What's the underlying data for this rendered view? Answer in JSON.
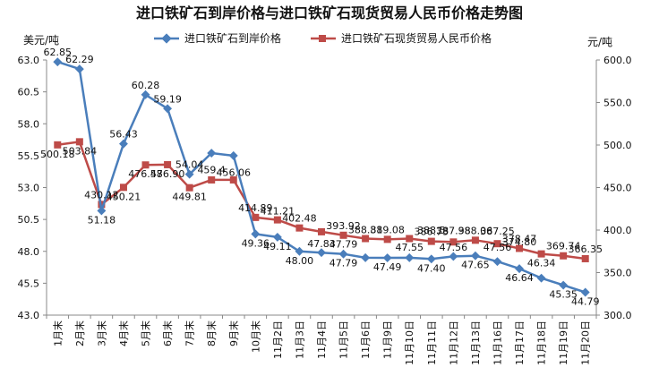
{
  "chart_data": {
    "type": "line",
    "title": "进口铁矿石到岸价格与进口铁矿石现货贸易人民币价格走势图",
    "ylabel_left": "美元/吨",
    "ylabel_right": "元/吨",
    "categories": [
      "1月末",
      "2月末",
      "3月末",
      "4月末",
      "5月末",
      "6月末",
      "7月末",
      "8月末",
      "9月末",
      "10月末",
      "11月2日",
      "11月3日",
      "11月4日",
      "11月5日",
      "11月6日",
      "11月9日",
      "11月10日",
      "11月11日",
      "11月12日",
      "11月13日",
      "11月16日",
      "11月17日",
      "11月18日",
      "11月19日",
      "11月20日"
    ],
    "y_left": {
      "min": 43.0,
      "max": 63.0,
      "ticks": [
        "43.0",
        "45.5",
        "48.0",
        "50.5",
        "53.0",
        "55.5",
        "58.0",
        "60.5",
        "63.0"
      ]
    },
    "y_right": {
      "min": 300.0,
      "max": 600.0,
      "ticks": [
        "300.0",
        "350.0",
        "400.0",
        "450.0",
        "500.0",
        "550.0",
        "600.0"
      ]
    },
    "grid": false,
    "legend_position": "top",
    "series": [
      {
        "name": "进口铁矿石到岸价格",
        "axis": "left",
        "color": "#4a7ebb",
        "marker": "diamond",
        "values": [
          62.85,
          62.29,
          51.18,
          56.43,
          60.28,
          59.19,
          54.04,
          55.7,
          55.5,
          49.36,
          49.11,
          48.0,
          47.9,
          47.79,
          47.5,
          47.49,
          47.5,
          47.4,
          47.6,
          47.65,
          47.2,
          46.64,
          45.9,
          45.35,
          44.79
        ],
        "labels": [
          "62.85",
          "62.29",
          "51.18",
          "56.43",
          "60.28",
          "59.19",
          "54.04",
          "",
          "",
          "49.36",
          "49.11",
          "48.00",
          "",
          "47.79",
          "",
          "47.49",
          "",
          "47.40",
          "",
          "47.65",
          "",
          "46.64",
          "",
          "45.35",
          "44.79"
        ]
      },
      {
        "name": "进口铁矿石现货贸易人民币价格",
        "axis": "right",
        "color": "#be4b48",
        "marker": "square",
        "values": [
          500.18,
          503.84,
          430.12,
          450.21,
          476.58,
          476.9,
          449.81,
          459.0,
          459.0,
          414.89,
          412.0,
          402.48,
          398.0,
          393.92,
          390.0,
          389.08,
          390.0,
          386.73,
          386.0,
          388.06,
          384.0,
          378.47,
          372.0,
          369.74,
          366.35
        ],
        "labels": [
          "500.18",
          "503.84",
          "430.12",
          "450.21",
          "476.58",
          "476.90",
          "449.81",
          "",
          "",
          "414.89",
          "",
          "402.48",
          "",
          "393.92",
          "",
          "389.08",
          "",
          "386.73",
          "",
          "388.06",
          "",
          "378.47",
          "",
          "369.74",
          "366.35"
        ]
      }
    ],
    "overlapping_labels": [
      "459.4",
      "456.06",
      "411.21",
      "47.83",
      "47.79",
      "388.81",
      "47.55",
      "388.5",
      "387.98",
      "47.56",
      "387.25",
      "47.56",
      "374.80",
      "46.34"
    ]
  }
}
